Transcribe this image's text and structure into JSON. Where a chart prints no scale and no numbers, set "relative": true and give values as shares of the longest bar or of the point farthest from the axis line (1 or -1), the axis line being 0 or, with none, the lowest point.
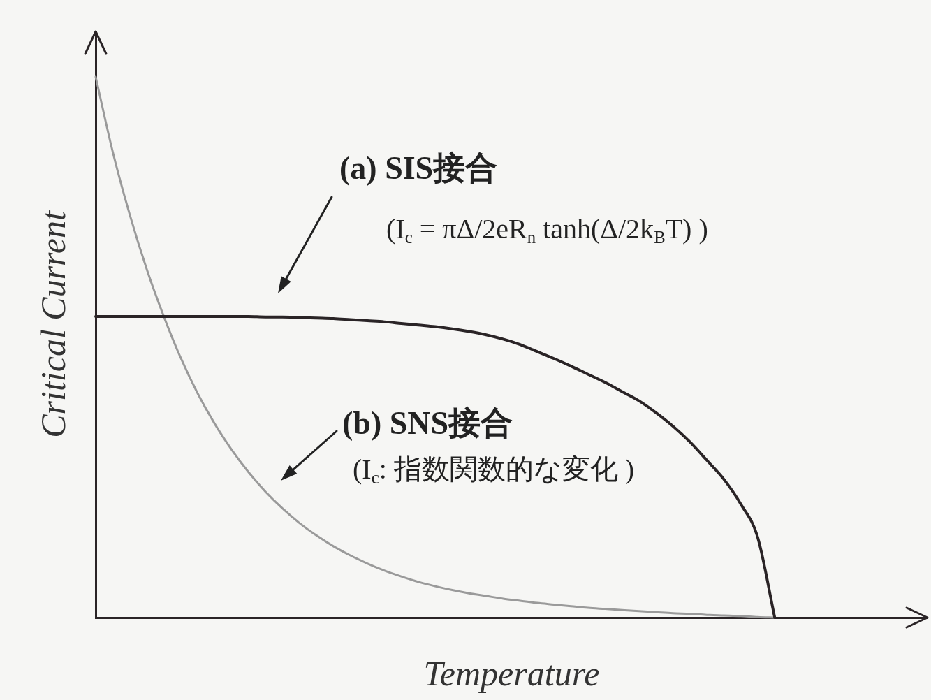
{
  "chart_data": {
    "type": "line",
    "xlabel": "Temperature",
    "ylabel": "Critical Current",
    "relative": true,
    "legend": false,
    "marker": "none",
    "categories": [
      null,
      null,
      null,
      null,
      null,
      null,
      null,
      null,
      null,
      null,
      null,
      null,
      null,
      null,
      null,
      null,
      null,
      null,
      null,
      null,
      null,
      null,
      null,
      null,
      null,
      null,
      null,
      null,
      null,
      null,
      null,
      null,
      null,
      null,
      null,
      null,
      null,
      null,
      null,
      null,
      null,
      null,
      null,
      null,
      null,
      null,
      null,
      null,
      null,
      null
    ],
    "series": [
      {
        "color": "#2a2426",
        "values": [
          0.557,
          0.557,
          0.557,
          0.557,
          0.557,
          0.557,
          0.557,
          0.557,
          0.557,
          0.557,
          0.556,
          0.556,
          0.555,
          0.554,
          0.553,
          0.551,
          0.549,
          0.547,
          0.544,
          0.541,
          0.538,
          0.534,
          0.529,
          0.523,
          0.515,
          0.505,
          0.492,
          0.479,
          0.465,
          0.45,
          0.435,
          0.418,
          0.401,
          0.379,
          0.354,
          0.325,
          0.291,
          0.256,
          0.21,
          0.148,
          0,
          null,
          null,
          null,
          null,
          null,
          null,
          null,
          null,
          null
        ]
      },
      {
        "color": "#9a9a9a",
        "values": [
          1,
          0.862,
          0.746,
          0.645,
          0.558,
          0.481,
          0.415,
          0.359,
          0.311,
          0.269,
          0.233,
          0.202,
          0.175,
          0.152,
          0.132,
          0.115,
          0.1,
          0.087,
          0.076,
          0.066,
          0.058,
          0.051,
          0.045,
          0.04,
          0.035,
          0.031,
          0.027,
          0.024,
          0.021,
          0.018,
          0.016,
          0.014,
          0.012,
          0.01,
          0.008,
          0.007,
          0.005,
          0.004,
          0.003,
          0.001,
          0,
          null,
          null,
          null,
          null,
          null,
          null,
          null,
          null,
          null
        ]
      }
    ],
    "annotations": [
      "(a) SIS接合",
      "(I$_{c}$ = πΔ/2eR$_{n}$ tanh(Δ/2k$_{B}$T) )",
      "(b) SNS接合",
      "(I$_{c}$: 指数関数的な変化 )"
    ]
  }
}
